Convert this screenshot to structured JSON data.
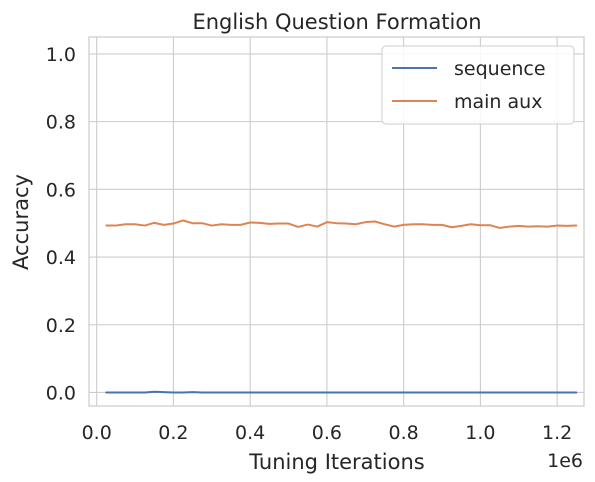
{
  "chart_data": {
    "type": "line",
    "title": "English Question Formation",
    "xlabel": "Tuning Iterations",
    "ylabel": "Accuracy",
    "x_offset_label": "1e6",
    "xlim": [
      -0.02,
      1.27
    ],
    "ylim": [
      -0.04,
      1.05
    ],
    "xticks": [
      0.0,
      0.2,
      0.4,
      0.6,
      0.8,
      1.0,
      1.2
    ],
    "xtick_labels": [
      "0.0",
      "0.2",
      "0.4",
      "0.6",
      "0.8",
      "1.0",
      "1.2"
    ],
    "yticks": [
      0.0,
      0.2,
      0.4,
      0.6,
      0.8,
      1.0
    ],
    "ytick_labels": [
      "0.0",
      "0.2",
      "0.4",
      "0.6",
      "0.8",
      "1.0"
    ],
    "grid": true,
    "legend_position": "top-right",
    "series": [
      {
        "name": "sequence",
        "color": "#4c72b0",
        "x": [
          0.025,
          0.05,
          0.075,
          0.1,
          0.125,
          0.15,
          0.175,
          0.2,
          0.225,
          0.25,
          0.275,
          0.3,
          0.325,
          0.35,
          0.375,
          0.4,
          0.425,
          0.45,
          0.475,
          0.5,
          0.525,
          0.55,
          0.575,
          0.6,
          0.625,
          0.65,
          0.675,
          0.7,
          0.725,
          0.75,
          0.775,
          0.8,
          0.825,
          0.85,
          0.875,
          0.9,
          0.925,
          0.95,
          0.975,
          1.0,
          1.025,
          1.05,
          1.075,
          1.1,
          1.125,
          1.15,
          1.175,
          1.2,
          1.225,
          1.25
        ],
        "y": [
          0.0,
          0.0,
          0.0,
          0.0,
          0.0,
          0.002,
          0.001,
          0.0,
          0.0,
          0.001,
          0.0,
          0.0,
          0.0,
          0.0,
          0.0,
          0.0,
          0.0,
          0.0,
          0.0,
          0.0,
          0.0,
          0.0,
          0.0,
          0.0,
          0.0,
          0.0,
          0.0,
          0.0,
          0.0,
          0.0,
          0.0,
          0.0,
          0.0,
          0.0,
          0.0,
          0.0,
          0.0,
          0.0,
          0.0,
          0.0,
          0.0,
          0.0,
          0.0,
          0.0,
          0.0,
          0.0,
          0.0,
          0.0,
          0.0,
          0.0
        ]
      },
      {
        "name": "main aux",
        "color": "#dd8452",
        "x": [
          0.025,
          0.05,
          0.075,
          0.1,
          0.125,
          0.15,
          0.175,
          0.2,
          0.225,
          0.25,
          0.275,
          0.3,
          0.325,
          0.35,
          0.375,
          0.4,
          0.425,
          0.45,
          0.475,
          0.5,
          0.525,
          0.55,
          0.575,
          0.6,
          0.625,
          0.65,
          0.675,
          0.7,
          0.725,
          0.75,
          0.775,
          0.8,
          0.825,
          0.85,
          0.875,
          0.9,
          0.925,
          0.95,
          0.975,
          1.0,
          1.025,
          1.05,
          1.075,
          1.1,
          1.125,
          1.15,
          1.175,
          1.2,
          1.225,
          1.25
        ],
        "y": [
          0.493,
          0.493,
          0.497,
          0.497,
          0.493,
          0.501,
          0.495,
          0.499,
          0.508,
          0.5,
          0.5,
          0.493,
          0.497,
          0.495,
          0.495,
          0.502,
          0.501,
          0.498,
          0.499,
          0.499,
          0.489,
          0.496,
          0.49,
          0.503,
          0.5,
          0.499,
          0.497,
          0.503,
          0.505,
          0.497,
          0.49,
          0.495,
          0.497,
          0.497,
          0.495,
          0.495,
          0.488,
          0.492,
          0.497,
          0.494,
          0.494,
          0.486,
          0.49,
          0.492,
          0.49,
          0.491,
          0.49,
          0.493,
          0.492,
          0.493
        ]
      }
    ]
  }
}
